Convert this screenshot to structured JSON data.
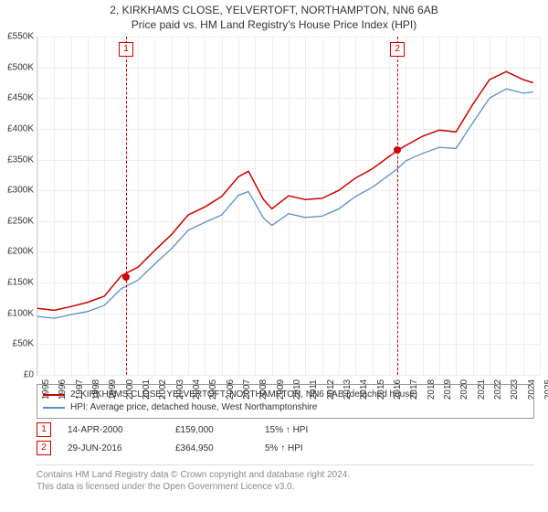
{
  "title_line1": "2, KIRKHAMS CLOSE, YELVERTOFT, NORTHAMPTON, NN6 6AB",
  "title_line2": "Price paid vs. HM Land Registry's House Price Index (HPI)",
  "chart": {
    "type": "line",
    "background_color": "#ffffff",
    "grid_color": "#eeeeee",
    "border_color": "#d0d0d0",
    "x_min": 1995,
    "x_max": 2025,
    "y_min": 0,
    "y_max": 550,
    "x_ticks": [
      1995,
      1996,
      1997,
      1998,
      1999,
      2000,
      2001,
      2002,
      2003,
      2004,
      2005,
      2006,
      2007,
      2008,
      2009,
      2010,
      2011,
      2012,
      2013,
      2014,
      2015,
      2016,
      2017,
      2018,
      2019,
      2020,
      2021,
      2022,
      2023,
      2024,
      2025
    ],
    "y_ticks": [
      {
        "v": 0,
        "label": "£0"
      },
      {
        "v": 50,
        "label": "£50K"
      },
      {
        "v": 100,
        "label": "£100K"
      },
      {
        "v": 150,
        "label": "£150K"
      },
      {
        "v": 200,
        "label": "£200K"
      },
      {
        "v": 250,
        "label": "£250K"
      },
      {
        "v": 300,
        "label": "£300K"
      },
      {
        "v": 350,
        "label": "£350K"
      },
      {
        "v": 400,
        "label": "£400K"
      },
      {
        "v": 450,
        "label": "£450K"
      },
      {
        "v": 500,
        "label": "£500K"
      },
      {
        "v": 550,
        "label": "£550K"
      }
    ],
    "series": [
      {
        "name": "property",
        "color": "#cc0000",
        "width": 1.5,
        "points": [
          [
            1995,
            108
          ],
          [
            1996,
            105
          ],
          [
            1997,
            111
          ],
          [
            1998,
            118
          ],
          [
            1999,
            128
          ],
          [
            2000,
            161
          ],
          [
            2001,
            175
          ],
          [
            2002,
            202
          ],
          [
            2003,
            228
          ],
          [
            2004,
            260
          ],
          [
            2005,
            273
          ],
          [
            2006,
            290
          ],
          [
            2007,
            322
          ],
          [
            2007.6,
            331
          ],
          [
            2008.5,
            285
          ],
          [
            2009,
            270
          ],
          [
            2010,
            291
          ],
          [
            2011,
            285
          ],
          [
            2012,
            287
          ],
          [
            2013,
            300
          ],
          [
            2014,
            320
          ],
          [
            2015,
            335
          ],
          [
            2016.5,
            365
          ],
          [
            2017,
            373
          ],
          [
            2018,
            388
          ],
          [
            2019,
            398
          ],
          [
            2020,
            395
          ],
          [
            2021,
            440
          ],
          [
            2022,
            480
          ],
          [
            2023,
            493
          ],
          [
            2024,
            480
          ],
          [
            2024.6,
            475
          ]
        ]
      },
      {
        "name": "hpi",
        "color": "#5b8fc9",
        "width": 1.3,
        "points": [
          [
            1995,
            95
          ],
          [
            1996,
            92
          ],
          [
            1997,
            98
          ],
          [
            1998,
            103
          ],
          [
            1999,
            113
          ],
          [
            2000,
            140
          ],
          [
            2001,
            154
          ],
          [
            2002,
            180
          ],
          [
            2003,
            205
          ],
          [
            2004,
            235
          ],
          [
            2005,
            248
          ],
          [
            2006,
            260
          ],
          [
            2007,
            292
          ],
          [
            2007.6,
            298
          ],
          [
            2008.5,
            255
          ],
          [
            2009,
            243
          ],
          [
            2010,
            262
          ],
          [
            2011,
            256
          ],
          [
            2012,
            258
          ],
          [
            2013,
            270
          ],
          [
            2014,
            290
          ],
          [
            2015,
            305
          ],
          [
            2016.5,
            335
          ],
          [
            2017,
            348
          ],
          [
            2018,
            360
          ],
          [
            2019,
            370
          ],
          [
            2020,
            368
          ],
          [
            2021,
            410
          ],
          [
            2022,
            450
          ],
          [
            2023,
            465
          ],
          [
            2024,
            458
          ],
          [
            2024.6,
            460
          ]
        ]
      }
    ],
    "markers": [
      {
        "n": "1",
        "x": 2000.29,
        "y": 159,
        "color": "#cc0000"
      },
      {
        "n": "2",
        "x": 2016.5,
        "y": 365,
        "color": "#cc0000"
      }
    ],
    "marker_dash_color": "#cc0000"
  },
  "legend": [
    {
      "color": "#cc0000",
      "label": "2, KIRKHAMS CLOSE, YELVERTOFT, NORTHAMPTON, NN6 6AB (detached house)"
    },
    {
      "color": "#5b8fc9",
      "label": "HPI: Average price, detached house, West Northamptonshire"
    }
  ],
  "events": [
    {
      "n": "1",
      "date": "14-APR-2000",
      "price": "£159,000",
      "note": "15% ↑ HPI"
    },
    {
      "n": "2",
      "date": "29-JUN-2016",
      "price": "£364,950",
      "note": "5% ↑ HPI"
    }
  ],
  "footer_line1": "Contains HM Land Registry data © Crown copyright and database right 2024.",
  "footer_line2": "This data is licensed under the Open Government Licence v3.0."
}
